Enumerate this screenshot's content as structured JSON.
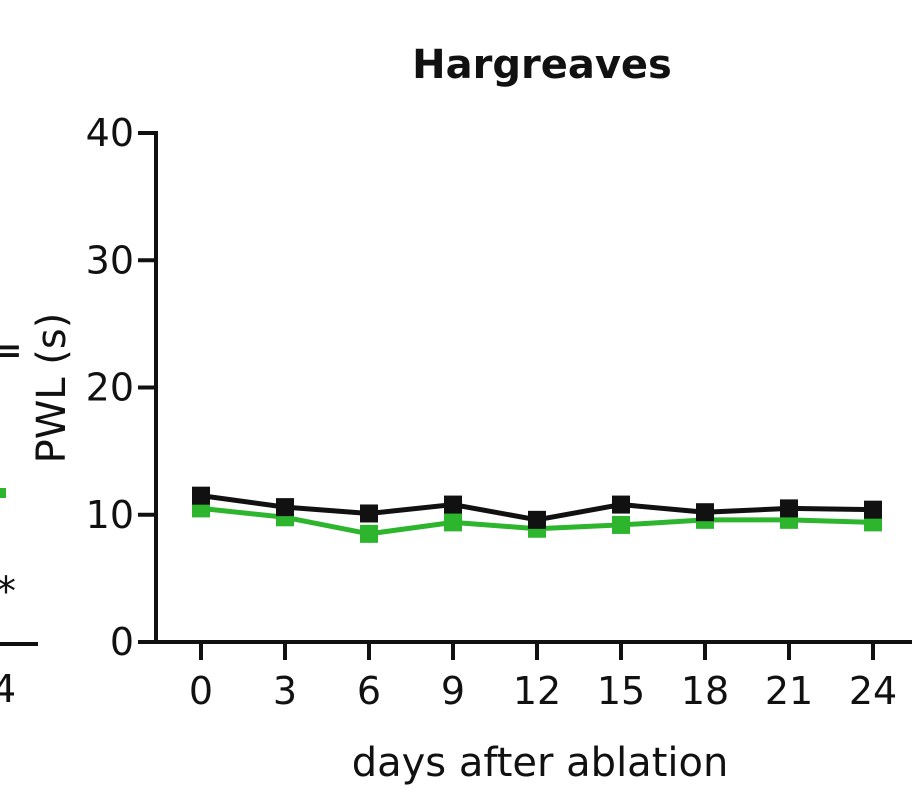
{
  "chart_data": {
    "type": "line",
    "title": "Hargreaves",
    "xlabel": "days after ablation",
    "ylabel": "PWL (s)",
    "x": [
      0,
      3,
      6,
      9,
      12,
      15,
      18,
      21,
      24
    ],
    "xticks": [
      "0",
      "3",
      "6",
      "9",
      "12",
      "15",
      "18",
      "21",
      "24"
    ],
    "yticks": [
      "0",
      "10",
      "20",
      "30",
      "40"
    ],
    "ylim": [
      0,
      40
    ],
    "grid": false,
    "series": [
      {
        "color": "#111111",
        "values": [
          11.5,
          10.6,
          10.1,
          10.8,
          9.6,
          10.8,
          10.2,
          10.5,
          10.4
        ],
        "err": [
          0.5,
          0.5,
          0.6,
          0.5,
          0.4,
          0.6,
          0.5,
          0.5,
          0.5
        ]
      },
      {
        "color": "#2db52d",
        "values": [
          10.5,
          9.8,
          8.5,
          9.4,
          8.9,
          9.2,
          9.6,
          9.6,
          9.4
        ],
        "err": [
          0.6,
          0.5,
          0.7,
          0.6,
          0.6,
          0.5,
          0.4,
          0.5,
          0.5
        ]
      }
    ],
    "neighbor_fragment": {
      "tick": "4",
      "mark": "*",
      "glyph": "="
    }
  }
}
